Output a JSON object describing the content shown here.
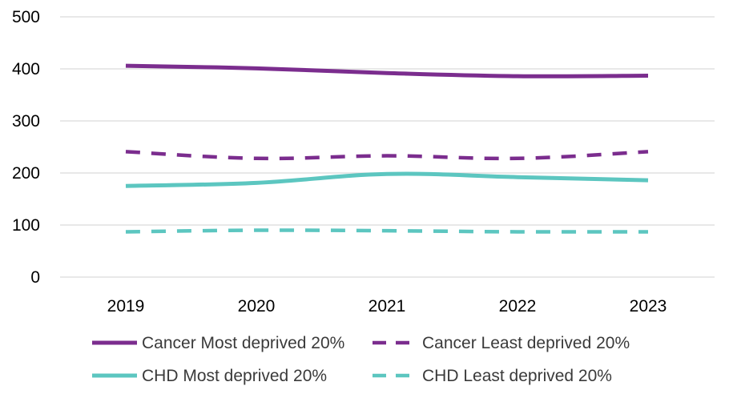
{
  "chart_data": {
    "type": "line",
    "title": "",
    "xlabel": "",
    "ylabel": "",
    "categories": [
      "2019",
      "2020",
      "2021",
      "2022",
      "2023"
    ],
    "ylim": [
      0,
      500
    ],
    "yticks": [
      "0",
      "100",
      "200",
      "300",
      "400",
      "500"
    ],
    "grid": true,
    "legend_position": "bottom",
    "series": [
      {
        "name": "Cancer Most deprived 20%",
        "values": [
          406,
          401,
          392,
          386,
          387
        ],
        "color": "#7b2d8e",
        "style": "solid"
      },
      {
        "name": "Cancer Least deprived 20%",
        "values": [
          241,
          228,
          233,
          228,
          241
        ],
        "color": "#7b2d8e",
        "style": "dashed"
      },
      {
        "name": "CHD Most deprived 20%",
        "values": [
          175,
          181,
          198,
          192,
          186
        ],
        "color": "#5cc6c0",
        "style": "solid"
      },
      {
        "name": "CHD Least deprived 20%",
        "values": [
          87,
          90,
          89,
          87,
          87
        ],
        "color": "#5cc6c0",
        "style": "dashed"
      }
    ]
  }
}
